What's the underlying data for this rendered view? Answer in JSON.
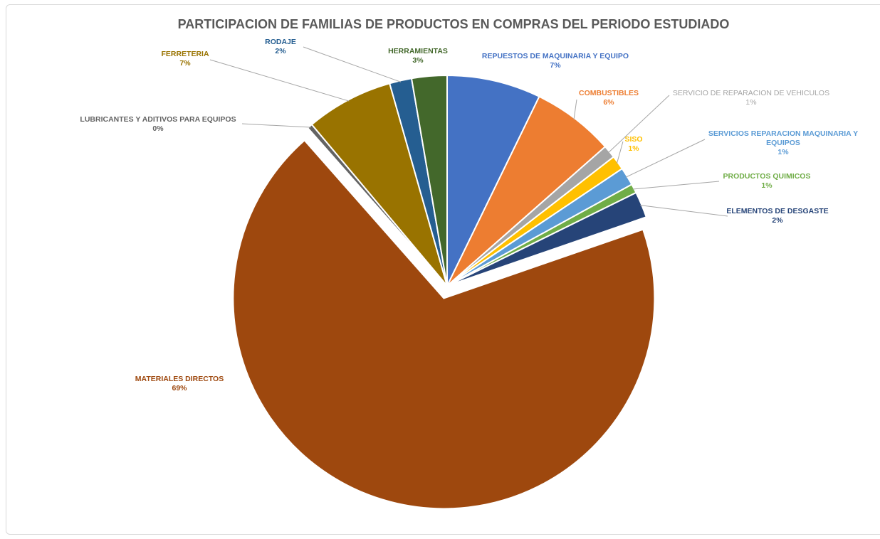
{
  "chart_data": {
    "type": "pie",
    "title": "PARTICIPACION DE FAMILIAS  DE PRODUCTOS  EN COMPRAS  DEL PERIODO ESTUDIADO",
    "slices": [
      {
        "label": "REPUESTOS  DE MAQUINARIA  Y EQUIPO",
        "label_lines": [
          "REPUESTOS  DE MAQUINARIA  Y EQUIPO"
        ],
        "percent_label": "7%",
        "value": 7.2,
        "color": "#4472C4",
        "label_color": "#4472C4",
        "bold": true
      },
      {
        "label": "COMBUSTIBLES",
        "label_lines": [
          "COMBUSTIBLES"
        ],
        "percent_label": "6%",
        "value": 6.3,
        "color": "#ED7D31",
        "label_color": "#ED7D31",
        "bold": true
      },
      {
        "label": "SERVICIO  DE  REPARACION  DE  VEHICULOS",
        "label_lines": [
          "SERVICIO  DE  REPARACION  DE  VEHICULOS"
        ],
        "percent_label": "1%",
        "value": 1.0,
        "color": "#A5A5A5",
        "label_color": "#A5A5A5",
        "bold": false
      },
      {
        "label": "SISO",
        "label_lines": [
          "SISO"
        ],
        "percent_label": "1%",
        "value": 1.1,
        "color": "#FFC000",
        "label_color": "#FFC000",
        "bold": true
      },
      {
        "label": "SERVICIOS  REPARACION  MAQUINARIA  Y EQUIPOS",
        "label_lines": [
          "SERVICIOS  REPARACION  MAQUINARIA  Y",
          "EQUIPOS"
        ],
        "percent_label": "1%",
        "value": 1.4,
        "color": "#5B9BD5",
        "label_color": "#5B9BD5",
        "bold": true
      },
      {
        "label": "PRODUCTOS  QUIMICOS",
        "label_lines": [
          "PRODUCTOS  QUIMICOS"
        ],
        "percent_label": "1%",
        "value": 0.7,
        "color": "#70AD47",
        "label_color": "#70AD47",
        "bold": true
      },
      {
        "label": "ELEMENTOS  DE DESGASTE",
        "label_lines": [
          "ELEMENTOS  DE DESGASTE"
        ],
        "percent_label": "2%",
        "value": 2.0,
        "color": "#264478",
        "label_color": "#264478",
        "bold": true
      },
      {
        "label": "MATERIALES  DIRECTOS",
        "label_lines": [
          "MATERIALES  DIRECTOS"
        ],
        "percent_label": "69%",
        "value": 68.8,
        "color": "#9E480E",
        "label_color": "#9E480E",
        "bold": true,
        "exploded": true
      },
      {
        "label": "LUBRICANTES  Y ADITIVOS  PARA EQUIPOS",
        "label_lines": [
          "LUBRICANTES  Y ADITIVOS  PARA EQUIPOS"
        ],
        "percent_label": "0%",
        "value": 0.4,
        "color": "#636363",
        "label_color": "#636363",
        "bold": true
      },
      {
        "label": "FERRETERIA",
        "label_lines": [
          "FERRETERIA"
        ],
        "percent_label": "7%",
        "value": 6.7,
        "color": "#997300",
        "label_color": "#997300",
        "bold": true
      },
      {
        "label": "RODAJE",
        "label_lines": [
          "RODAJE"
        ],
        "percent_label": "2%",
        "value": 1.7,
        "color": "#255E91",
        "label_color": "#255E91",
        "bold": true
      },
      {
        "label": "HERRAMIENTAS",
        "label_lines": [
          "HERRAMIENTAS"
        ],
        "percent_label": "3%",
        "value": 2.7,
        "color": "#43682B",
        "label_color": "#43682B",
        "bold": true
      }
    ],
    "legend": "none"
  }
}
